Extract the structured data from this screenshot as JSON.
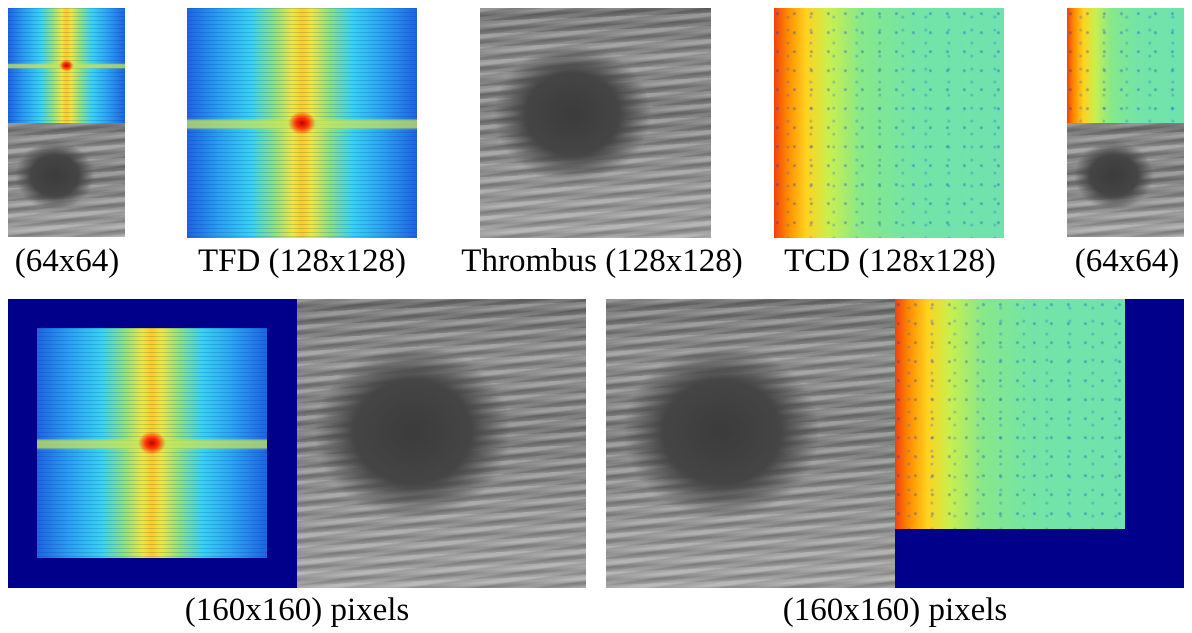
{
  "top_row": {
    "captions": [
      "(64x64)",
      "TFD (128x128)",
      "Thrombus (128x128)",
      "TCD (128x128)",
      "(64x64)"
    ]
  },
  "bottom_row": {
    "captions": [
      "(160x160) pixels",
      "(160x160) pixels"
    ]
  },
  "colors": {
    "padding_background": "#00008b",
    "background": "#ffffff"
  }
}
